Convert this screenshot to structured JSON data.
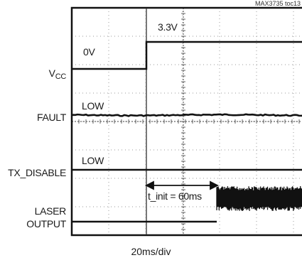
{
  "figure_id": "MAX3735 toc13",
  "chart_data": {
    "type": "line",
    "title": "",
    "xlabel": "20ms/div",
    "ylabel": "",
    "grid": true,
    "x_divisions": 10,
    "channels": [
      {
        "name": "V",
        "name_sub": "CC",
        "level_labels": [
          "0V",
          "3.3V"
        ],
        "steps": [
          [
            "0ms",
            "0V"
          ],
          [
            "42ms",
            "3.3V"
          ]
        ]
      },
      {
        "name": "FAULT",
        "level_labels": [
          "LOW"
        ],
        "steps": [
          [
            "0ms",
            "LOW"
          ]
        ]
      },
      {
        "name": "TX_DISABLE",
        "level_labels": [
          "LOW"
        ],
        "steps": [
          [
            "0ms",
            "LOW"
          ]
        ]
      },
      {
        "name": "LASER",
        "name_line2": "OUTPUT",
        "steps": [
          [
            "0ms",
            "off"
          ],
          [
            "102ms",
            "modulated"
          ]
        ]
      }
    ],
    "annotations": [
      {
        "text": "t_init = 60ms",
        "from": "42ms",
        "to": "102ms"
      }
    ]
  }
}
